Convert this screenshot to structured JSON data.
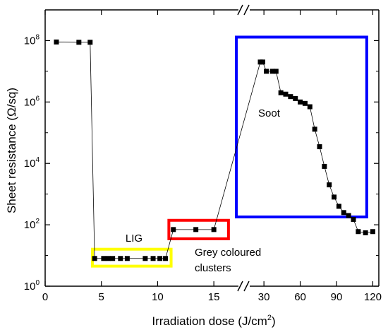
{
  "chart_data": {
    "type": "scatter",
    "xlabel_main": "Irradiation dose (J/cm",
    "xlabel_sup": "2",
    "xlabel_end": ")",
    "ylabel": "Sheet resistance (Ω/sq)",
    "y_scale": "log",
    "ylim": [
      1,
      1000000000
    ],
    "x_segments": [
      {
        "xlim": [
          0,
          17.5
        ],
        "ticks": [
          0,
          5,
          10,
          15
        ]
      },
      {
        "xlim": [
          20,
          125
        ],
        "ticks": [
          30,
          60,
          90,
          120
        ]
      }
    ],
    "y_ticks": [
      {
        "base": "10",
        "exp": "0",
        "value": 1
      },
      {
        "base": "10",
        "exp": "2",
        "value": 100
      },
      {
        "base": "10",
        "exp": "4",
        "value": 10000
      },
      {
        "base": "10",
        "exp": "6",
        "value": 1000000
      },
      {
        "base": "10",
        "exp": "8",
        "value": 100000000
      }
    ],
    "series": [
      {
        "points": [
          {
            "x": 1,
            "y": 90000000
          },
          {
            "x": 3,
            "y": 88000000
          },
          {
            "x": 4,
            "y": 88000000
          },
          {
            "x": 4.4,
            "y": 8
          },
          {
            "x": 5.2,
            "y": 8
          },
          {
            "x": 5.6,
            "y": 8
          },
          {
            "x": 6.0,
            "y": 8
          },
          {
            "x": 6.7,
            "y": 8
          },
          {
            "x": 7.3,
            "y": 8
          },
          {
            "x": 8.9,
            "y": 8
          },
          {
            "x": 9.6,
            "y": 8
          },
          {
            "x": 10.2,
            "y": 8
          },
          {
            "x": 10.7,
            "y": 8
          },
          {
            "x": 11.4,
            "y": 70
          },
          {
            "x": 13.4,
            "y": 70
          },
          {
            "x": 15.0,
            "y": 70
          },
          {
            "x": 27,
            "y": 20000000
          },
          {
            "x": 29,
            "y": 20000000
          },
          {
            "x": 32,
            "y": 10000000
          },
          {
            "x": 37,
            "y": 10000000
          },
          {
            "x": 40,
            "y": 10000000
          },
          {
            "x": 44,
            "y": 2000000
          },
          {
            "x": 48,
            "y": 1800000
          },
          {
            "x": 52,
            "y": 1500000
          },
          {
            "x": 56,
            "y": 1300000
          },
          {
            "x": 60,
            "y": 1000000
          },
          {
            "x": 64,
            "y": 900000
          },
          {
            "x": 68,
            "y": 700000
          },
          {
            "x": 72,
            "y": 130000
          },
          {
            "x": 76,
            "y": 35000
          },
          {
            "x": 80,
            "y": 8000
          },
          {
            "x": 84,
            "y": 2000
          },
          {
            "x": 88,
            "y": 800
          },
          {
            "x": 92,
            "y": 400
          },
          {
            "x": 96,
            "y": 250
          },
          {
            "x": 100,
            "y": 200
          },
          {
            "x": 104,
            "y": 150
          },
          {
            "x": 108,
            "y": 60
          },
          {
            "x": 114,
            "y": 55
          },
          {
            "x": 120,
            "y": 60
          }
        ]
      }
    ],
    "regions": [
      {
        "label": "LIG",
        "color": "#ffff00",
        "x_range": [
          4.2,
          11.2
        ],
        "y_range": [
          4.5,
          16
        ]
      },
      {
        "label_lines": [
          "Grey coloured",
          "clusters"
        ],
        "color": "#ff0000",
        "x_range": [
          11.0,
          16.3
        ],
        "y_range": [
          35,
          140
        ]
      },
      {
        "label": "Soot",
        "color": "#0000ff",
        "x_range": [
          -4,
          115
        ],
        "y_range": [
          180,
          130000000
        ]
      }
    ]
  }
}
